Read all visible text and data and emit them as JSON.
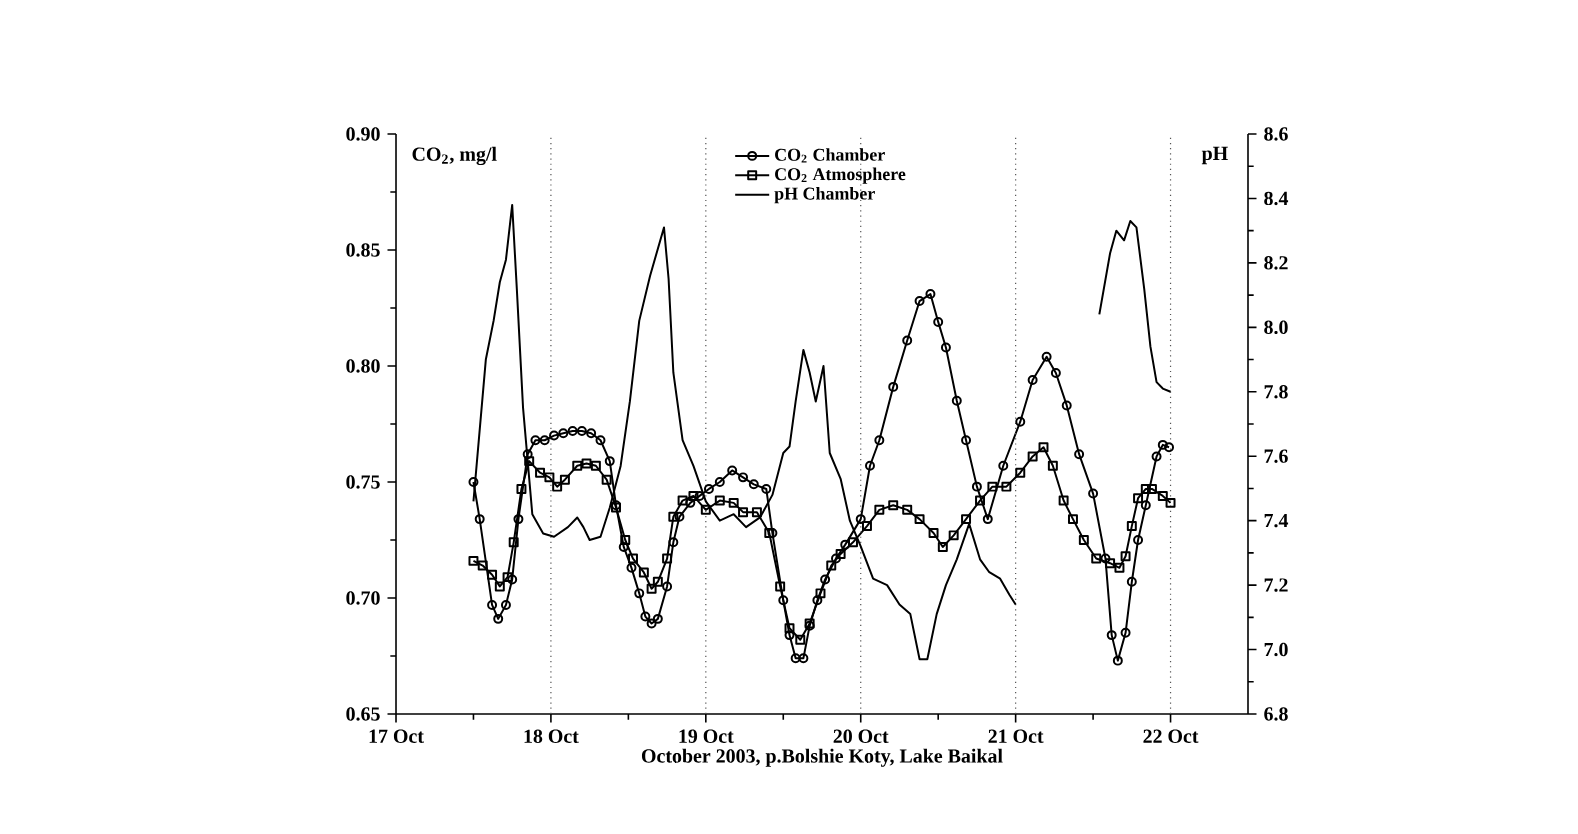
{
  "chart_data": {
    "type": "line",
    "xlabel": "October 2003, p.Bolshie Koty, Lake Baikal",
    "ylabel": "CO$_{2}$, mg/l",
    "y2label": "pH",
    "xlim": [
      "2003-10-17",
      "2003-10-22T12:00"
    ],
    "xticks": [
      {
        "value": "2003-10-17",
        "label": "17 Oct"
      },
      {
        "value": "2003-10-18",
        "label": "18 Oct"
      },
      {
        "value": "2003-10-19",
        "label": "19 Oct"
      },
      {
        "value": "2003-10-20",
        "label": "20 Oct"
      },
      {
        "value": "2003-10-21",
        "label": "21 Oct"
      },
      {
        "value": "2003-10-22",
        "label": "22 Oct"
      }
    ],
    "ylim": [
      0.65,
      0.9
    ],
    "yticks": [
      0.65,
      {
        "value": 0.7,
        "label": "0.70"
      },
      0.75,
      {
        "value": 0.8,
        "label": "0.80"
      },
      0.85,
      {
        "value": 0.9,
        "label": "0.90"
      }
    ],
    "y2lim": [
      6.8,
      8.6
    ],
    "y2ticks": [
      6.8,
      {
        "value": 7.0,
        "label": "7.0"
      },
      7.2,
      7.4,
      7.6,
      7.8,
      {
        "value": 8.0,
        "label": "8.0"
      },
      8.2,
      8.4,
      8.6
    ],
    "legend": "top",
    "ref_lines": [
      {
        "axis": "x",
        "value": "2003-10-18",
        "line_style": "dotted",
        "color": "#555555"
      },
      {
        "axis": "x",
        "value": "2003-10-19",
        "line_style": "dotted",
        "color": "#555555"
      },
      {
        "axis": "x",
        "value": "2003-10-20",
        "line_style": "dotted",
        "color": "#555555"
      },
      {
        "axis": "x",
        "value": "2003-10-21",
        "line_style": "dotted",
        "color": "#555555"
      },
      {
        "axis": "x",
        "value": "2003-10-22",
        "line_style": "dotted",
        "color": "#555555"
      }
    ],
    "series": [
      {
        "name": "CO$_{2}$ Chamber",
        "color": "#000000",
        "marker": "circle",
        "line_style": "solid",
        "x": [
          "2003-10-17T12:00",
          "2003-10-17T12:58",
          "2003-10-17T14:53",
          "2003-10-17T15:50",
          "2003-10-17T17:02",
          "2003-10-17T18:00",
          "2003-10-17T18:58",
          "2003-10-17T20:24",
          "2003-10-17T21:36",
          "2003-10-17T23:02",
          "2003-10-18T00:29",
          "2003-10-18T01:55",
          "2003-10-18T03:22",
          "2003-10-18T04:48",
          "2003-10-18T06:14",
          "2003-10-18T07:41",
          "2003-10-18T09:07",
          "2003-10-18T10:05",
          "2003-10-18T11:17",
          "2003-10-18T12:29",
          "2003-10-18T13:41",
          "2003-10-18T14:38",
          "2003-10-18T15:36",
          "2003-10-18T16:34",
          "2003-10-18T18:00",
          "2003-10-18T18:58",
          "2003-10-18T19:55",
          "2003-10-18T21:36",
          "2003-10-18T23:02",
          "2003-10-19T00:29",
          "2003-10-19T02:10",
          "2003-10-19T04:05",
          "2003-10-19T05:46",
          "2003-10-19T07:26",
          "2003-10-19T09:22",
          "2003-10-19T10:19",
          "2003-10-19T12:00",
          "2003-10-19T12:58",
          "2003-10-19T13:55",
          "2003-10-19T15:07",
          "2003-10-19T16:05",
          "2003-10-19T17:17",
          "2003-10-19T18:29",
          "2003-10-19T20:10",
          "2003-10-19T21:36",
          "2003-10-20T00:00",
          "2003-10-20T01:26",
          "2003-10-20T02:53",
          "2003-10-20T05:02",
          "2003-10-20T07:12",
          "2003-10-20T09:07",
          "2003-10-20T10:48",
          "2003-10-20T12:00",
          "2003-10-20T13:12",
          "2003-10-20T14:53",
          "2003-10-20T16:19",
          "2003-10-20T18:00",
          "2003-10-20T19:41",
          "2003-10-20T22:05",
          "2003-10-21T00:43",
          "2003-10-21T02:38",
          "2003-10-21T04:48",
          "2003-10-21T06:14",
          "2003-10-21T07:55",
          "2003-10-21T09:50",
          "2003-10-21T12:00",
          "2003-10-21T13:55",
          "2003-10-21T14:53",
          "2003-10-21T15:50",
          "2003-10-21T17:02",
          "2003-10-21T18:00",
          "2003-10-21T18:58",
          "2003-10-21T20:10",
          "2003-10-21T21:50",
          "2003-10-21T22:48",
          "2003-10-21T23:46"
        ],
        "values": [
          0.75,
          0.734,
          0.697,
          0.691,
          0.697,
          0.708,
          0.734,
          0.762,
          0.768,
          0.768,
          0.77,
          0.771,
          0.772,
          0.772,
          0.771,
          0.768,
          0.759,
          0.74,
          0.722,
          0.713,
          0.702,
          0.692,
          0.689,
          0.691,
          0.705,
          0.724,
          0.735,
          0.741,
          0.744,
          0.747,
          0.75,
          0.755,
          0.752,
          0.749,
          0.747,
          0.728,
          0.699,
          0.684,
          0.674,
          0.674,
          0.688,
          0.699,
          0.708,
          0.717,
          0.723,
          0.734,
          0.757,
          0.768,
          0.791,
          0.811,
          0.828,
          0.831,
          0.819,
          0.808,
          0.785,
          0.768,
          0.748,
          0.734,
          0.757,
          0.776,
          0.794,
          0.804,
          0.797,
          0.783,
          0.762,
          0.745,
          0.717,
          0.684,
          0.673,
          0.685,
          0.707,
          0.725,
          0.74,
          0.761,
          0.766,
          0.765
        ]
      },
      {
        "name": "CO$_{2}$ Atmosphere",
        "color": "#000000",
        "marker": "square",
        "line_style": "solid",
        "x": [
          "2003-10-17T12:00",
          "2003-10-17T13:26",
          "2003-10-17T14:53",
          "2003-10-17T16:05",
          "2003-10-17T17:17",
          "2003-10-17T18:14",
          "2003-10-17T19:26",
          "2003-10-17T20:38",
          "2003-10-17T22:19",
          "2003-10-17T23:46",
          "2003-10-18T00:58",
          "2003-10-18T02:10",
          "2003-10-18T04:05",
          "2003-10-18T05:31",
          "2003-10-18T06:58",
          "2003-10-18T08:38",
          "2003-10-18T10:05",
          "2003-10-18T11:31",
          "2003-10-18T12:43",
          "2003-10-18T14:24",
          "2003-10-18T15:36",
          "2003-10-18T16:34",
          "2003-10-18T18:00",
          "2003-10-18T18:58",
          "2003-10-18T20:24",
          "2003-10-18T22:05",
          "2003-10-19T00:00",
          "2003-10-19T02:10",
          "2003-10-19T04:19",
          "2003-10-19T05:46",
          "2003-10-19T07:55",
          "2003-10-19T09:50",
          "2003-10-19T11:31",
          "2003-10-19T12:58",
          "2003-10-19T14:38",
          "2003-10-19T16:05",
          "2003-10-19T17:46",
          "2003-10-19T19:26",
          "2003-10-19T20:53",
          "2003-10-19T22:48",
          "2003-10-20T00:58",
          "2003-10-20T02:53",
          "2003-10-20T05:02",
          "2003-10-20T07:12",
          "2003-10-20T09:07",
          "2003-10-20T11:17",
          "2003-10-20T12:43",
          "2003-10-20T14:24",
          "2003-10-20T16:19",
          "2003-10-20T18:29",
          "2003-10-20T20:24",
          "2003-10-20T22:34",
          "2003-10-21T00:43",
          "2003-10-21T02:38",
          "2003-10-21T04:19",
          "2003-10-21T05:46",
          "2003-10-21T07:26",
          "2003-10-21T08:53",
          "2003-10-21T10:34",
          "2003-10-21T12:29",
          "2003-10-21T14:38",
          "2003-10-21T16:05",
          "2003-10-21T17:02",
          "2003-10-21T18:00",
          "2003-10-21T18:58",
          "2003-10-21T20:10",
          "2003-10-21T21:07",
          "2003-10-21T22:48",
          "2003-10-22T00:00"
        ],
        "values": [
          0.716,
          0.714,
          0.71,
          0.705,
          0.709,
          0.724,
          0.747,
          0.759,
          0.754,
          0.752,
          0.748,
          0.751,
          0.757,
          0.758,
          0.757,
          0.751,
          0.739,
          0.725,
          0.717,
          0.711,
          0.704,
          0.707,
          0.717,
          0.735,
          0.742,
          0.744,
          0.738,
          0.742,
          0.741,
          0.737,
          0.737,
          0.728,
          0.705,
          0.687,
          0.682,
          0.689,
          0.702,
          0.714,
          0.719,
          0.724,
          0.731,
          0.738,
          0.74,
          0.738,
          0.734,
          0.728,
          0.722,
          0.727,
          0.734,
          0.742,
          0.748,
          0.748,
          0.754,
          0.761,
          0.765,
          0.757,
          0.742,
          0.734,
          0.725,
          0.717,
          0.715,
          0.713,
          0.718,
          0.731,
          0.743,
          0.747,
          0.747,
          0.744,
          0.741
        ]
      },
      {
        "name": "pH Chamber",
        "color": "#000000",
        "marker": "none",
        "line_style": "solid",
        "axis": "y2",
        "x": [
          "2003-10-17T12:00",
          "2003-10-17T13:55",
          "2003-10-17T15:07",
          "2003-10-17T16:05",
          "2003-10-17T17:02",
          "2003-10-17T18:00",
          "2003-10-17T18:43",
          "2003-10-17T19:41",
          "2003-10-17T21:07",
          "2003-10-17T22:48",
          "2003-10-18T00:29",
          "2003-10-18T02:38",
          "2003-10-18T04:05",
          "2003-10-18T05:02",
          "2003-10-18T06:00",
          "2003-10-18T07:41",
          "2003-10-18T09:07",
          "2003-10-18T10:48",
          "2003-10-18T12:14",
          "2003-10-18T13:41",
          "2003-10-18T15:22",
          "2003-10-18T17:31",
          "2003-10-18T18:14",
          "2003-10-18T18:58",
          "2003-10-18T20:24",
          "2003-10-18T22:05",
          "2003-10-19T00:00",
          "2003-10-19T02:10",
          "2003-10-19T04:19",
          "2003-10-19T06:14",
          "2003-10-19T08:24",
          "2003-10-19T10:19",
          "2003-10-19T12:00",
          "2003-10-19T12:58",
          "2003-10-19T13:55",
          "2003-10-19T15:07",
          "2003-10-19T16:05",
          "2003-10-19T17:02",
          "2003-10-19T18:14",
          "2003-10-19T19:12",
          "2003-10-19T20:53",
          "2003-10-19T22:19",
          "2003-10-20T00:00",
          "2003-10-20T01:55",
          "2003-10-20T04:05",
          "2003-10-20T06:00",
          "2003-10-20T07:41",
          "2003-10-20T09:07",
          "2003-10-20T10:19",
          "2003-10-20T11:46",
          "2003-10-20T13:12",
          "2003-10-20T14:53",
          "2003-10-20T16:48",
          "2003-10-20T18:29",
          "2003-10-20T19:55",
          "2003-10-20T21:36",
          "2003-10-20T23:02",
          "2003-10-21T00:00",
          "2003-10-21T06:29",
          "2003-10-21T12:58",
          "2003-10-21T14:38",
          "2003-10-21T15:36",
          "2003-10-21T16:48",
          "2003-10-21T17:46",
          "2003-10-21T18:43",
          "2003-10-21T19:55",
          "2003-10-21T20:53",
          "2003-10-21T21:50",
          "2003-10-21T22:48",
          "2003-10-22T00:00"
        ],
        "values": [
          7.46,
          7.9,
          8.02,
          8.14,
          8.21,
          8.38,
          8.12,
          7.75,
          7.42,
          7.36,
          7.35,
          7.38,
          7.41,
          7.38,
          7.34,
          7.35,
          7.44,
          7.57,
          7.77,
          8.02,
          8.16,
          8.31,
          8.15,
          7.86,
          7.65,
          7.57,
          7.46,
          7.4,
          7.42,
          7.38,
          7.41,
          7.48,
          7.61,
          7.63,
          7.77,
          7.93,
          7.86,
          7.77,
          7.88,
          7.61,
          7.53,
          7.4,
          7.32,
          7.22,
          7.2,
          7.14,
          7.11,
          6.97,
          6.97,
          7.11,
          7.2,
          7.28,
          7.39,
          7.28,
          7.24,
          7.22,
          7.17,
          7.14,
          null,
          8.04,
          8.23,
          8.3,
          8.27,
          8.33,
          8.31,
          8.12,
          7.94,
          7.83,
          7.81,
          7.8
        ]
      }
    ]
  }
}
